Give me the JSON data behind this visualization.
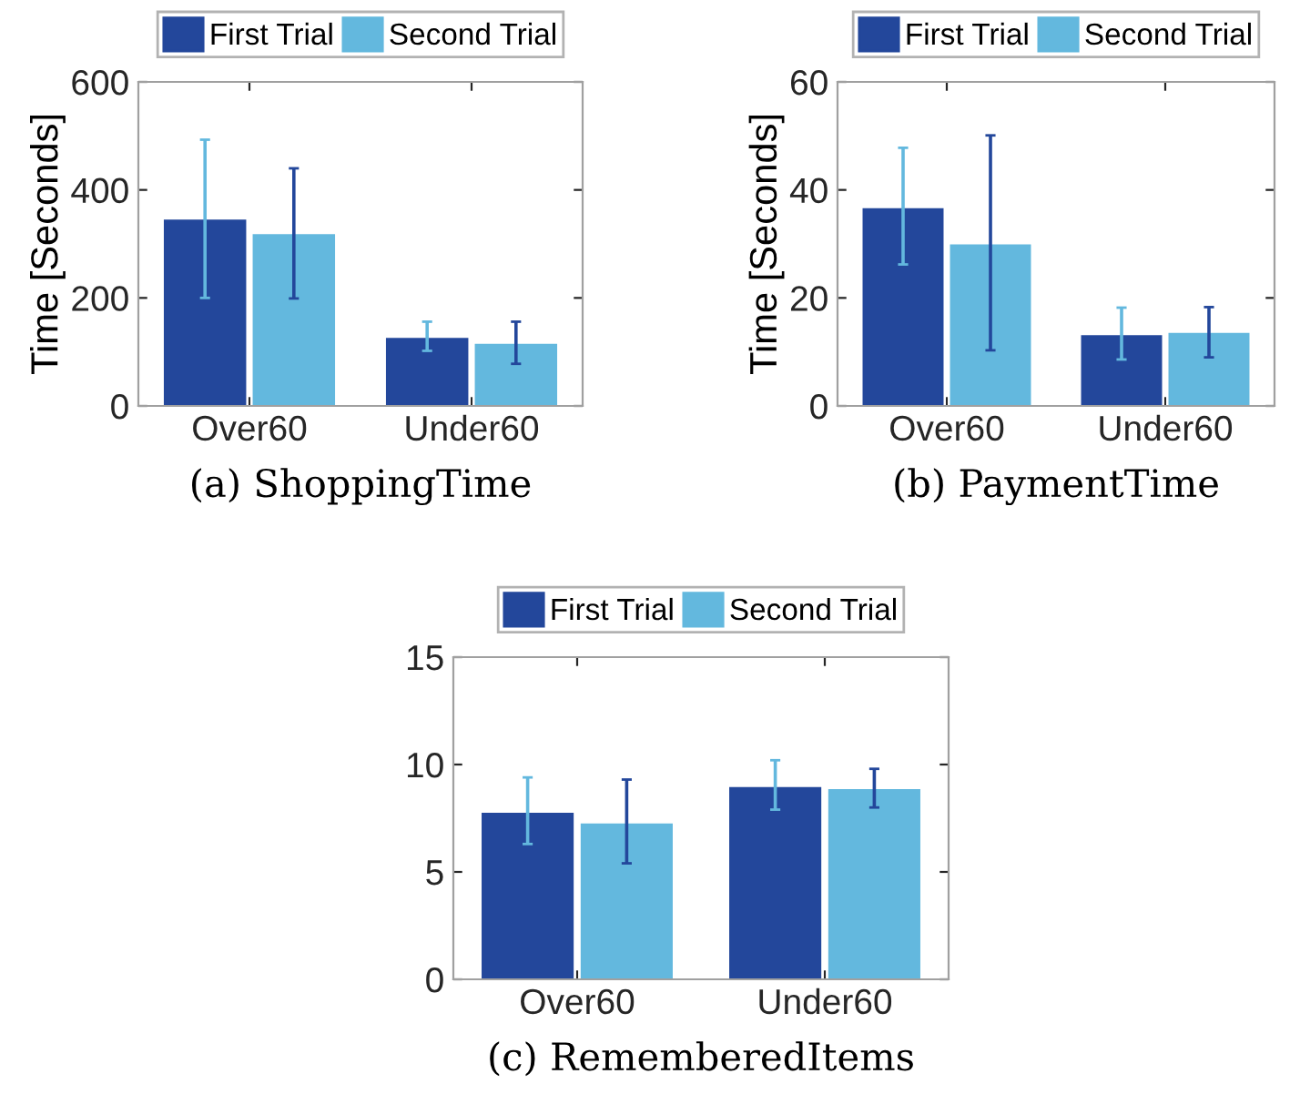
{
  "chart_data": [
    {
      "type": "bar",
      "xlabel": "(a) ShoppingTime",
      "ylabel": "Time [Seconds]",
      "categories": [
        "Over60",
        "Under60"
      ],
      "ylim": [
        0,
        600
      ],
      "yticks": [
        0,
        200,
        400,
        600
      ],
      "legend": "top",
      "grid": false,
      "series": [
        {
          "name": "First Trial",
          "color": "#23479b",
          "values": [
            347,
            128
          ],
          "errors": [
            [
              200,
              493
            ],
            [
              102,
              156
            ]
          ]
        },
        {
          "name": "Second Trial",
          "color": "#63b8de",
          "values": [
            320,
            117
          ],
          "errors": [
            [
              199,
              440
            ],
            [
              78,
              156
            ]
          ]
        }
      ]
    },
    {
      "type": "bar",
      "xlabel": "(b) PaymentTime",
      "ylabel": "Time [Seconds]",
      "categories": [
        "Over60",
        "Under60"
      ],
      "ylim": [
        0,
        60
      ],
      "yticks": [
        0,
        20,
        40,
        60
      ],
      "legend": "top",
      "grid": false,
      "series": [
        {
          "name": "First Trial",
          "color": "#23479b",
          "values": [
            36.8,
            13.3
          ],
          "errors": [
            [
              26.2,
              47.8
            ],
            [
              8.6,
              18.2
            ]
          ]
        },
        {
          "name": "Second Trial",
          "color": "#63b8de",
          "values": [
            30.1,
            13.7
          ],
          "errors": [
            [
              10.3,
              50.1
            ],
            [
              9.0,
              18.3
            ]
          ]
        }
      ]
    },
    {
      "type": "bar",
      "xlabel": "(c) RememberedItems",
      "categories": [
        "Over60",
        "Under60"
      ],
      "ylim": [
        0,
        15
      ],
      "yticks": [
        0,
        5,
        10,
        15
      ],
      "legend": "top",
      "grid": false,
      "series": [
        {
          "name": "First Trial",
          "color": "#23479b",
          "values": [
            7.8,
            9.0
          ],
          "errors": [
            [
              6.3,
              9.4
            ],
            [
              7.9,
              10.2
            ]
          ]
        },
        {
          "name": "Second Trial",
          "color": "#63b8de",
          "values": [
            7.3,
            8.9
          ],
          "errors": [
            [
              5.4,
              9.3
            ],
            [
              8.0,
              9.8
            ]
          ]
        }
      ]
    }
  ]
}
